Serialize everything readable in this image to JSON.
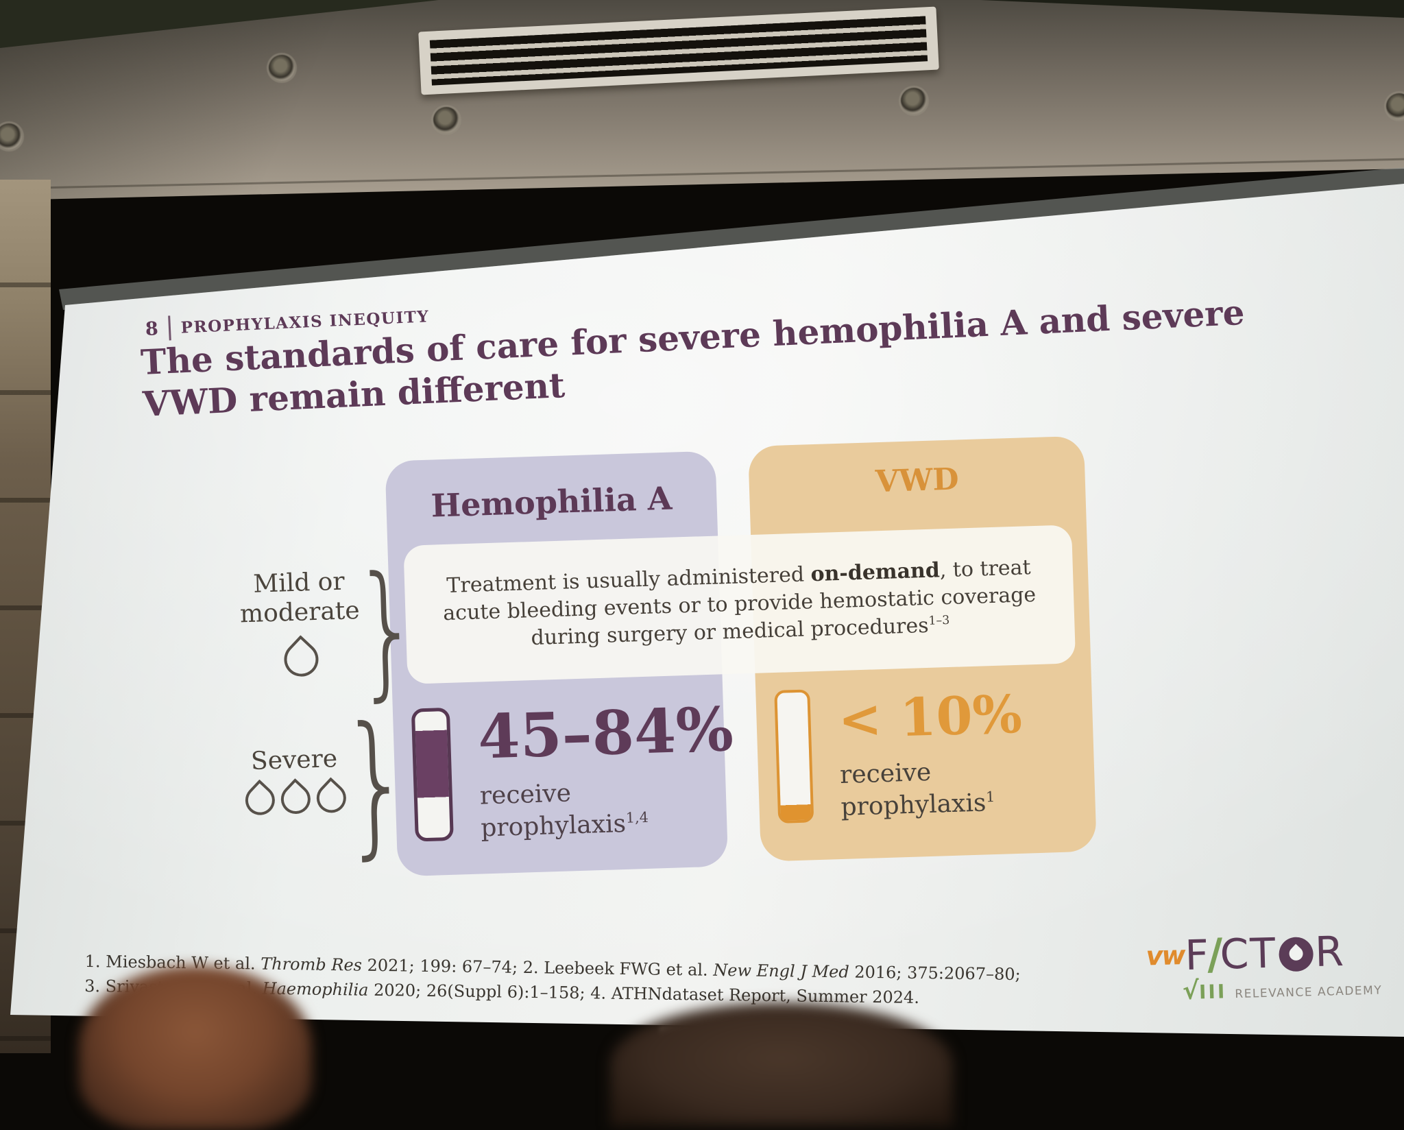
{
  "slide": {
    "number": "8",
    "eyebrow": "PROPHYLAXIS INEQUITY",
    "title_line1": "The standards of care for severe hemophilia A and severe",
    "title_line2": "VWD remain different",
    "shared_box": {
      "s1": "Treatment is usually administered ",
      "s2": "on-demand",
      "s3": ", to treat acute bleeding events or to provide hemostatic coverage during surgery or medical procedures",
      "sup": "1–3"
    },
    "severity": {
      "mild": {
        "line1": "Mild or",
        "line2": "moderate",
        "drop_count": 1
      },
      "severe": {
        "label": "Severe",
        "drop_count": 3
      }
    },
    "panels": {
      "hemophilia": {
        "header": "Hemophilia A",
        "stat": "45–84%",
        "caption_line1": "receive",
        "caption_line2": "prophylaxis",
        "caption_sup": "1,4",
        "vial_fill": "middle band ~15%–68% filled purple"
      },
      "vwd": {
        "header": "VWD",
        "stat": "< 10%",
        "caption_line1": "receive",
        "caption_line2": "prophylaxis",
        "caption_sup": "1",
        "vial_fill": "bottom ~12% filled orange"
      }
    },
    "references": {
      "line1": {
        "s1": "1. Miesbach W et al. ",
        "s2": "Thromb Res",
        "s3": " 2021; 199: 67–74; 2. Leebeek FWG et al. ",
        "s4": "New Engl J Med",
        "s5": " 2016; 375:2067–80;"
      },
      "line2": {
        "s1": "3. Srivastava A et al. ",
        "s2": "Haemophilia",
        "s3": " 2020; 26(Suppl 6):1–158; 4. ATHNdataset Report, Summer 2024."
      }
    },
    "logo": {
      "vw": "vw",
      "f": "F",
      "slash": "∕",
      "ct": "CT",
      "r": "R",
      "check": "√",
      "numeral": "III",
      "tagline": "RELEVANCE ACADEMY"
    }
  },
  "colors": {
    "title_purple": "#5d3a57",
    "panel_lavender": "#c9c7db",
    "panel_tan": "#e9cb9c",
    "accent_orange": "#dd9434",
    "vial_purple": "#6a4063",
    "body_text": "#453f38",
    "logo_green": "#7ba058",
    "logo_orange": "#e08b2d"
  }
}
